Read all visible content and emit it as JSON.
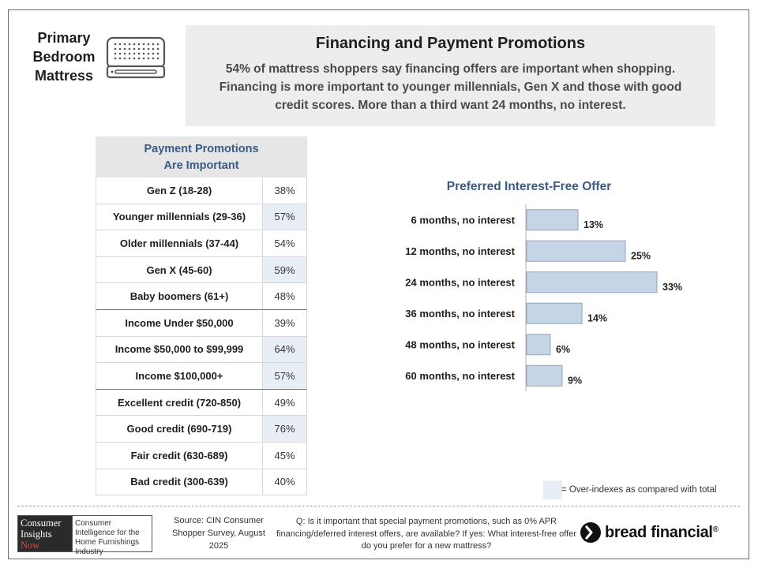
{
  "category": {
    "line1": "Primary",
    "line2": "Bedroom",
    "line3": "Mattress"
  },
  "header": {
    "title": "Financing and Payment Promotions",
    "text": "54% of mattress shoppers say financing offers are important when shopping. Financing is more important to younger millennials, Gen X and those with good credit scores. More than a third want 24 months, no interest."
  },
  "table": {
    "title_line1": "Payment Promotions",
    "title_line2": "Are Important",
    "rows": [
      {
        "label": "Gen Z (18-28)",
        "value": "38%",
        "over": false
      },
      {
        "label": "Younger millennials (29-36)",
        "value": "57%",
        "over": true
      },
      {
        "label": "Older millennials (37-44)",
        "value": "54%",
        "over": false
      },
      {
        "label": "Gen X (45-60)",
        "value": "59%",
        "over": true
      },
      {
        "label": "Baby boomers (61+)",
        "value": "48%",
        "over": false
      },
      {
        "label": "Income Under $50,000",
        "value": "39%",
        "over": false
      },
      {
        "label": "Income $50,000 to $99,999",
        "value": "64%",
        "over": true
      },
      {
        "label": "Income $100,000+",
        "value": "57%",
        "over": true
      },
      {
        "label": "Excellent credit (720-850)",
        "value": "49%",
        "over": false
      },
      {
        "label": "Good credit (690-719)",
        "value": "76%",
        "over": true
      },
      {
        "label": "Fair credit (630-689)",
        "value": "45%",
        "over": false
      },
      {
        "label": "Bad credit (300-639)",
        "value": "40%",
        "over": false
      }
    ]
  },
  "chart_data": {
    "type": "bar",
    "orientation": "horizontal",
    "title": "Preferred Interest-Free Offer",
    "categories": [
      "6 months, no interest",
      "12 months, no interest",
      "24 months, no interest",
      "36 months, no interest",
      "48 months, no interest",
      "60 months, no interest"
    ],
    "values": [
      13,
      25,
      33,
      14,
      6,
      9
    ],
    "value_labels": [
      "13%",
      "25%",
      "33%",
      "14%",
      "6%",
      "9%"
    ],
    "xlim": [
      0,
      35
    ],
    "grid": false,
    "bar_color": "#c5d5e6",
    "bar_border": "#8fa6be"
  },
  "legend": {
    "text": "= Over-indexes as compared with total",
    "color": "#e8eef6"
  },
  "footer": {
    "logo_left": [
      "Consumer",
      "Insights",
      "Now"
    ],
    "logo_right": "Consumer Intelligence for the Home Furnishings Industry",
    "source": "Source: CIN Consumer Shopper Survey, August 2025",
    "question": "Q: Is it important that special payment promotions, such as 0% APR financing/deferred interest offers, are available? If yes: What interest-free offer do you prefer for a new mattress?",
    "brand": "bread financial",
    "brand_suffix": "®"
  },
  "icons": {
    "mattress": "mattress-icon",
    "brand_mark": "bread-logo-icon"
  },
  "colors": {
    "accent_blue": "#3a5a85",
    "over_index": "#e8eef6"
  }
}
